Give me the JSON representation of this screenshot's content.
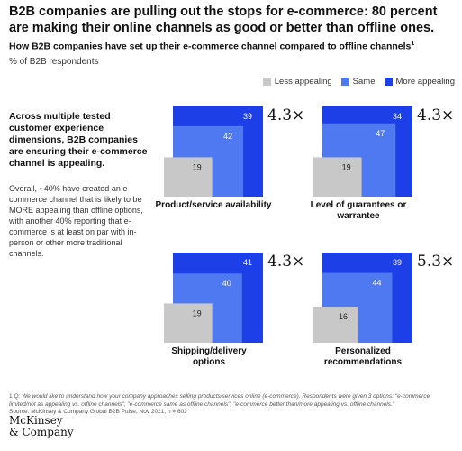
{
  "title": "B2B companies are pulling out the stops for e-commerce: 80 percent are making their online channels as good or better than offline ones.",
  "subtitle": "How B2B companies have set up their e-commerce channel compared to offline channels",
  "subtitle_footnote_mark": "1",
  "unit": "% of B2B respondents",
  "legend": [
    {
      "name": "Less appealing",
      "color": "#c8c8c8"
    },
    {
      "name": "Same",
      "color": "#4f79f0"
    },
    {
      "name": "More appealing",
      "color": "#1d3fe8"
    }
  ],
  "intro_heading": "Across multiple tested customer experience dimensions, B2B companies are ensuring their e-commerce channel is appealing.",
  "intro_body": "Overall, ~40% have created an e-commerce channel that is likely to be MORE appealing than offline options, with another 40% reporting that e-commerce is at least on par with in-person or other more traditional channels.",
  "footnote_mark": "1",
  "footnote_question": "Q: We would like to understand how your company approaches selling products/services online (e-commerce). Respondents were given 3 options: \"e-commerce limited/not as appealing vs. offline channels\"; \"e-commerce same as offline channels\"; \"e-commerce better than/more appealing vs. offline channels.\"",
  "footnote_source": "Source: McKinsey & Company Global B2B Pulse, Nov 2021, n = 602",
  "logo_line1": "McKinsey",
  "logo_line2": "& Company",
  "chart_data": [
    {
      "type": "area",
      "title": "Product/service availability",
      "series": [
        {
          "name": "Less appealing",
          "values": [
            19
          ]
        },
        {
          "name": "Same",
          "values": [
            42
          ]
        },
        {
          "name": "More appealing",
          "values": [
            39
          ]
        }
      ],
      "multiplier": "4.3×"
    },
    {
      "type": "area",
      "title": "Level of guarantees or warrantee",
      "series": [
        {
          "name": "Less appealing",
          "values": [
            19
          ]
        },
        {
          "name": "Same",
          "values": [
            47
          ]
        },
        {
          "name": "More appealing",
          "values": [
            34
          ]
        }
      ],
      "multiplier": "4.3×"
    },
    {
      "type": "area",
      "title": "Shipping/delivery options",
      "series": [
        {
          "name": "Less appealing",
          "values": [
            19
          ]
        },
        {
          "name": "Same",
          "values": [
            40
          ]
        },
        {
          "name": "More appealing",
          "values": [
            41
          ]
        }
      ],
      "multiplier": "4.3×"
    },
    {
      "type": "area",
      "title": "Personalized recommendations",
      "series": [
        {
          "name": "Less appealing",
          "values": [
            16
          ]
        },
        {
          "name": "Same",
          "values": [
            44
          ]
        },
        {
          "name": "More appealing",
          "values": [
            39
          ]
        }
      ],
      "multiplier": "5.3×"
    }
  ]
}
